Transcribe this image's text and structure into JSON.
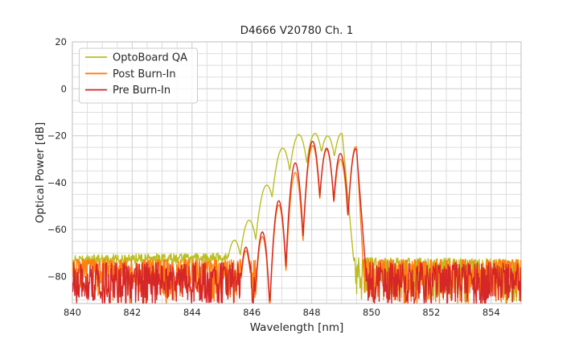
{
  "chart_data": {
    "type": "line",
    "title": "D4666 V20780 Ch. 1",
    "xlabel": "Wavelength [nm]",
    "ylabel": "Optical Power [dB]",
    "xlim": [
      840,
      855
    ],
    "ylim": [
      -91.5,
      20
    ],
    "xticks": [
      840,
      842,
      844,
      846,
      848,
      850,
      852,
      854
    ],
    "xtick_labels": [
      "840",
      "842",
      "844",
      "846",
      "848",
      "850",
      "852",
      "854"
    ],
    "yticks": [
      20,
      0,
      -20,
      -40,
      -60,
      -80
    ],
    "ytick_labels": [
      "20",
      "0",
      "−20",
      "−40",
      "−60",
      "−80"
    ],
    "minor_x_step": 0.5,
    "minor_y_step": 5,
    "grid": true,
    "grid_color_major": "#d4d4d4",
    "grid_color_minor": "#dedede",
    "spine_color": "#c9c9c9",
    "legend": {
      "position": "upper-left",
      "entries": [
        "OptoBoard QA",
        "Post Burn-In",
        "Pre Burn-In"
      ]
    },
    "series": [
      {
        "name": "OptoBoard QA",
        "color": "#bcbd22",
        "seed": 11,
        "modes": [
          [
            845.42,
            -64.5,
            170
          ],
          [
            845.91,
            -56.0,
            170
          ],
          [
            846.5,
            -41.0,
            170
          ],
          [
            847.03,
            -25.3,
            170
          ],
          [
            847.57,
            -19.5,
            170
          ],
          [
            848.11,
            -19.0,
            170
          ],
          [
            848.53,
            -20.1,
            170
          ],
          [
            849.0,
            -19.0,
            170
          ]
        ],
        "caps": [
          {
            "x0": 849.02,
            "y0": -19.0,
            "x1": 849.36,
            "y1": -67.0
          }
        ],
        "noise": [
          {
            "x0": 840.0,
            "x1": 845.32,
            "top0": -70.8,
            "top1": -69.8,
            "amp": 4.2,
            "pw": 1.0
          },
          {
            "x0": 849.36,
            "x1": 855.0,
            "top0": -72.0,
            "top1": -72.5,
            "amp": 19.0,
            "pw": 1.7
          }
        ]
      },
      {
        "name": "Post Burn-In",
        "color": "#ff7f0e",
        "seed": 22,
        "modes": [
          [
            845.8,
            -69.0,
            500
          ],
          [
            846.35,
            -63.0,
            500
          ],
          [
            846.9,
            -49.5,
            500
          ],
          [
            847.45,
            -35.7,
            450
          ],
          [
            848.03,
            -24.2,
            400
          ],
          [
            848.5,
            -25.9,
            400
          ],
          [
            848.96,
            -30.0,
            400
          ],
          [
            849.47,
            -24.7,
            450
          ]
        ],
        "caps": [
          {
            "x0": 849.5,
            "y0": -24.7,
            "x1": 849.74,
            "y1": -79.0
          }
        ],
        "noise": [
          {
            "x0": 840.0,
            "x1": 846.5,
            "top0": -72.8,
            "top1": -72.8,
            "amp": 19.0,
            "pw": 2.0
          },
          {
            "x0": 849.72,
            "x1": 855.0,
            "top0": -72.8,
            "top1": -72.8,
            "amp": 19.0,
            "pw": 2.0
          }
        ]
      },
      {
        "name": "Pre Burn-In",
        "color": "#d62728",
        "seed": 33,
        "modes": [
          [
            845.8,
            -67.5,
            500
          ],
          [
            846.35,
            -61.0,
            500
          ],
          [
            846.9,
            -47.7,
            500
          ],
          [
            847.45,
            -31.6,
            450
          ],
          [
            848.03,
            -22.4,
            400
          ],
          [
            848.5,
            -25.3,
            400
          ],
          [
            848.96,
            -27.6,
            400
          ],
          [
            849.47,
            -25.6,
            450
          ]
        ],
        "caps": [
          {
            "x0": 849.5,
            "y0": -25.6,
            "x1": 849.8,
            "y1": -76.0
          }
        ],
        "noise": [
          {
            "x0": 840.0,
            "x1": 846.5,
            "top0": -74.0,
            "top1": -74.0,
            "amp": 18.0,
            "pw": 1.25
          },
          {
            "x0": 849.78,
            "x1": 855.0,
            "top0": -74.0,
            "top1": -74.0,
            "amp": 18.0,
            "pw": 1.25
          }
        ]
      }
    ]
  }
}
